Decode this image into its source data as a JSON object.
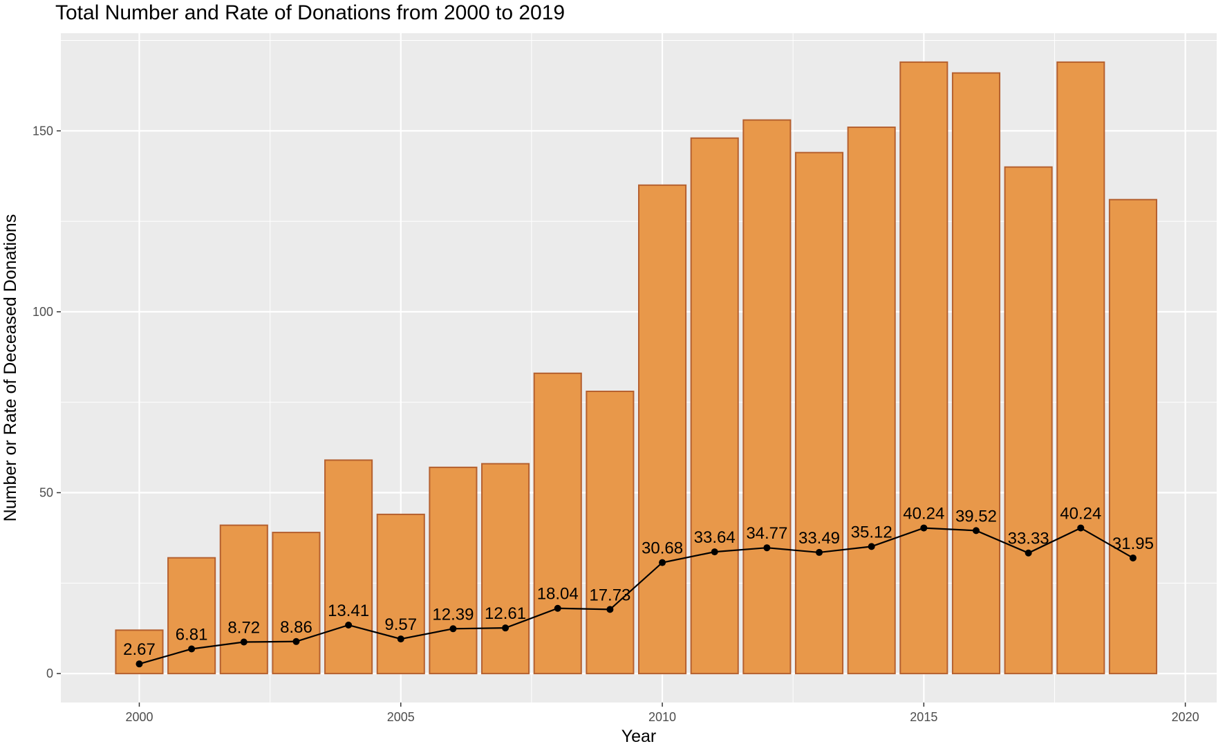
{
  "chart_data": {
    "type": "bar",
    "title": "Total Number and Rate of Donations from 2000 to 2019",
    "xlabel": "Year",
    "ylabel": "Number or Rate of Deceased Donations",
    "x": [
      2000,
      2001,
      2002,
      2003,
      2004,
      2005,
      2006,
      2007,
      2008,
      2009,
      2010,
      2011,
      2012,
      2013,
      2014,
      2015,
      2016,
      2017,
      2018,
      2019
    ],
    "xlim": [
      1998.5,
      2020.6
    ],
    "ylim": [
      -8,
      177
    ],
    "x_ticks": [
      2000,
      2005,
      2010,
      2015,
      2020
    ],
    "y_ticks": [
      0,
      50,
      100,
      150
    ],
    "grid": true,
    "legend": "none",
    "series": [
      {
        "type": "bar",
        "values": [
          12,
          32,
          41,
          39,
          59,
          44,
          57,
          58,
          83,
          78,
          135,
          148,
          153,
          144,
          151,
          169,
          166,
          140,
          169,
          131
        ]
      },
      {
        "type": "line",
        "values": [
          2.67,
          6.81,
          8.72,
          8.86,
          13.41,
          9.57,
          12.39,
          12.61,
          18.04,
          17.73,
          30.68,
          33.64,
          34.77,
          33.49,
          35.12,
          40.24,
          39.52,
          33.33,
          40.24,
          31.95
        ],
        "labels": [
          "2.67",
          "6.81",
          "8.72",
          "8.86",
          "13.41",
          "9.57",
          "12.39",
          "12.61",
          "18.04",
          "17.73",
          "30.68",
          "33.64",
          "34.77",
          "33.49",
          "35.12",
          "40.24",
          "39.52",
          "33.33",
          "40.24",
          "31.95"
        ]
      }
    ],
    "colors": {
      "bar_fill": "#e8984a",
      "bar_stroke": "#b5602f",
      "line": "#000000",
      "panel_bg": "#ebebeb",
      "grid": "#ffffff"
    }
  }
}
